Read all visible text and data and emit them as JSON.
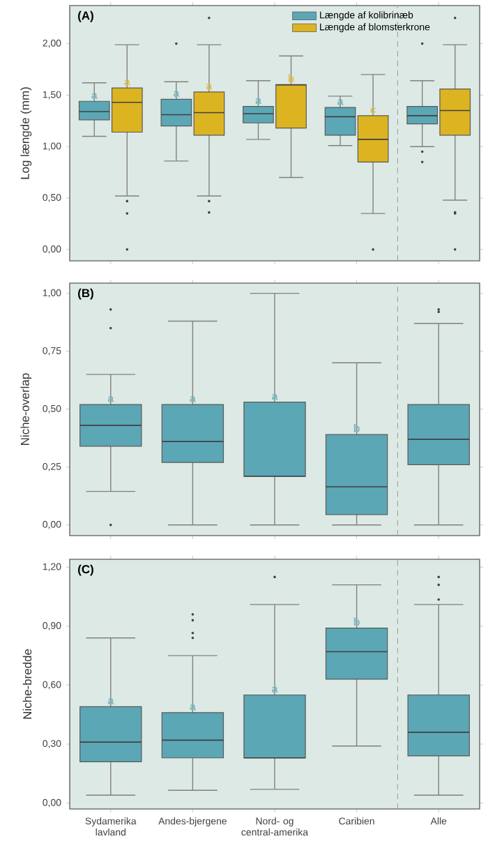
{
  "chart_data": [
    {
      "type": "box",
      "title": "(A)",
      "ylabel": "Log længde (mm)",
      "categories": [
        "Sydamerika lavland",
        "Andes-bjergene",
        "Nord- og central-amerika",
        "Caribien",
        "Alle"
      ],
      "series": [
        {
          "name": "Længde af kolibrinæb",
          "color": "#5ba7b5",
          "boxes": [
            {
              "low": 1.1,
              "q1": 1.26,
              "median": 1.34,
              "q3": 1.44,
              "high": 1.62
            },
            {
              "low": 0.86,
              "q1": 1.2,
              "median": 1.31,
              "q3": 1.46,
              "high": 1.63,
              "outliers": [
                2.0
              ]
            },
            {
              "low": 1.07,
              "q1": 1.23,
              "median": 1.32,
              "q3": 1.39,
              "high": 1.64
            },
            {
              "low": 1.01,
              "q1": 1.11,
              "median": 1.29,
              "q3": 1.38,
              "high": 1.49
            },
            {
              "low": 1.0,
              "q1": 1.22,
              "median": 1.3,
              "q3": 1.39,
              "high": 1.64,
              "outliers": [
                0.95,
                0.85,
                2.0
              ]
            }
          ]
        },
        {
          "name": "Længde af blomsterkrone",
          "color": "#dcb421",
          "boxes": [
            {
              "low": 0.52,
              "q1": 1.14,
              "median": 1.43,
              "q3": 1.57,
              "high": 1.99,
              "outliers": [
                0.47,
                0.35,
                0.0
              ]
            },
            {
              "low": 0.52,
              "q1": 1.11,
              "median": 1.33,
              "q3": 1.53,
              "high": 1.99,
              "outliers": [
                0.47,
                0.36,
                2.25
              ]
            },
            {
              "low": 0.7,
              "q1": 1.18,
              "median": 1.6,
              "q3": 1.6,
              "high": 1.88
            },
            {
              "low": 0.35,
              "q1": 0.85,
              "median": 1.07,
              "q3": 1.3,
              "high": 1.7,
              "outliers": [
                0.0
              ]
            },
            {
              "low": 0.48,
              "q1": 1.11,
              "median": 1.35,
              "q3": 1.56,
              "high": 1.99,
              "outliers": [
                0.36,
                0.35,
                0.0,
                2.25
              ]
            }
          ]
        }
      ],
      "ylim": [
        -0.11,
        2.37
      ],
      "yticks": [
        {
          "value": 0,
          "label": "0,00"
        },
        {
          "value": 0.5,
          "label": "0,50"
        },
        {
          "value": 1,
          "label": "1,00"
        },
        {
          "value": 1.5,
          "label": "1,50"
        },
        {
          "value": 2,
          "label": "2,00"
        }
      ],
      "tick_labels": "y",
      "legend": "top right",
      "annotations": [
        {
          "text": "a",
          "x": "Sydamerika lavland",
          "y": 1.44
        },
        {
          "text": "a",
          "x": "Sydamerika lavland",
          "y": 1.57
        },
        {
          "text": "a",
          "x": "Andes-bjergene",
          "y": 1.46
        },
        {
          "text": "a",
          "x": "Andes-bjergene",
          "y": 1.53
        },
        {
          "text": "a",
          "x": "Nord- og central-amerika",
          "y": 1.39
        },
        {
          "text": "b",
          "x": "Nord- og central-amerika",
          "y": 1.6
        },
        {
          "text": "a",
          "x": "Caribien",
          "y": 1.38
        },
        {
          "text": "c",
          "x": "Caribien",
          "y": 1.3
        }
      ]
    },
    {
      "type": "box",
      "title": "(B)",
      "ylabel": "Niche-overlap",
      "categories": [
        "Sydamerika lavland",
        "Andes-bjergene",
        "Nord- og central-amerika",
        "Caribien",
        "Alle"
      ],
      "series": [
        {
          "color": "#5ba7b5",
          "boxes": [
            {
              "low": 0.145,
              "q1": 0.34,
              "median": 0.43,
              "q3": 0.52,
              "high": 0.65,
              "outliers": [
                0.93,
                0.85,
                0.0
              ]
            },
            {
              "low": 0.0,
              "q1": 0.27,
              "median": 0.36,
              "q3": 0.52,
              "high": 0.88
            },
            {
              "low": 0.0,
              "q1": 0.21,
              "median": 0.21,
              "q3": 0.53,
              "high": 1.0
            },
            {
              "low": 0.0,
              "q1": 0.045,
              "median": 0.165,
              "q3": 0.39,
              "high": 0.7
            },
            {
              "low": 0.0,
              "q1": 0.26,
              "median": 0.37,
              "q3": 0.52,
              "high": 0.87,
              "outliers": [
                0.93,
                0.92
              ]
            }
          ]
        }
      ],
      "ylim": [
        -0.046,
        1.044
      ],
      "yticks": [
        {
          "value": 0,
          "label": "0,00"
        },
        {
          "value": 0.25,
          "label": "0,25"
        },
        {
          "value": 0.5,
          "label": "0,50"
        },
        {
          "value": 0.75,
          "label": "0,75"
        },
        {
          "value": 1,
          "label": "1,00"
        }
      ],
      "tick_labels": "y",
      "annotations": [
        {
          "text": "a",
          "x": "Sydamerika lavland",
          "y": 0.52
        },
        {
          "text": "a",
          "x": "Andes-bjergene",
          "y": 0.52
        },
        {
          "text": "a",
          "x": "Nord- og central-amerika",
          "y": 0.53
        },
        {
          "text": "b",
          "x": "Caribien",
          "y": 0.39
        }
      ]
    },
    {
      "type": "box",
      "title": "(C)",
      "ylabel": "Niche-bredde",
      "categories": [
        "Sydamerika lavland",
        "Andes-bjergene",
        "Nord- og central-amerika",
        "Caribien",
        "Alle"
      ],
      "series": [
        {
          "color": "#5ba7b5",
          "boxes": [
            {
              "low": 0.04,
              "q1": 0.21,
              "median": 0.31,
              "q3": 0.49,
              "high": 0.84
            },
            {
              "low": 0.065,
              "q1": 0.23,
              "median": 0.32,
              "q3": 0.46,
              "high": 0.75,
              "outliers": [
                0.96,
                0.93,
                0.865,
                0.84
              ]
            },
            {
              "low": 0.07,
              "q1": 0.23,
              "median": 0.23,
              "q3": 0.55,
              "high": 1.01,
              "outliers": [
                1.15
              ]
            },
            {
              "low": 0.29,
              "q1": 0.63,
              "median": 0.77,
              "q3": 0.89,
              "high": 1.11
            },
            {
              "low": 0.04,
              "q1": 0.24,
              "median": 0.36,
              "q3": 0.55,
              "high": 1.01,
              "outliers": [
                1.15,
                1.11,
                1.035
              ]
            }
          ]
        }
      ],
      "ylim": [
        -0.03,
        1.24
      ],
      "yticks": [
        {
          "value": 0,
          "label": "0,00"
        },
        {
          "value": 0.3,
          "label": "0,30"
        },
        {
          "value": 0.6,
          "label": "0,60"
        },
        {
          "value": 0.9,
          "label": "0,90"
        },
        {
          "value": 1.2,
          "label": "1,20"
        }
      ],
      "annotations": [
        {
          "text": "a",
          "x": "Sydamerika lavland",
          "y": 0.49
        },
        {
          "text": "a",
          "x": "Andes-bjergene",
          "y": 0.46
        },
        {
          "text": "a",
          "x": "Nord- og central-amerika",
          "y": 0.55
        },
        {
          "text": "b",
          "x": "Caribien",
          "y": 0.89
        }
      ]
    }
  ]
}
